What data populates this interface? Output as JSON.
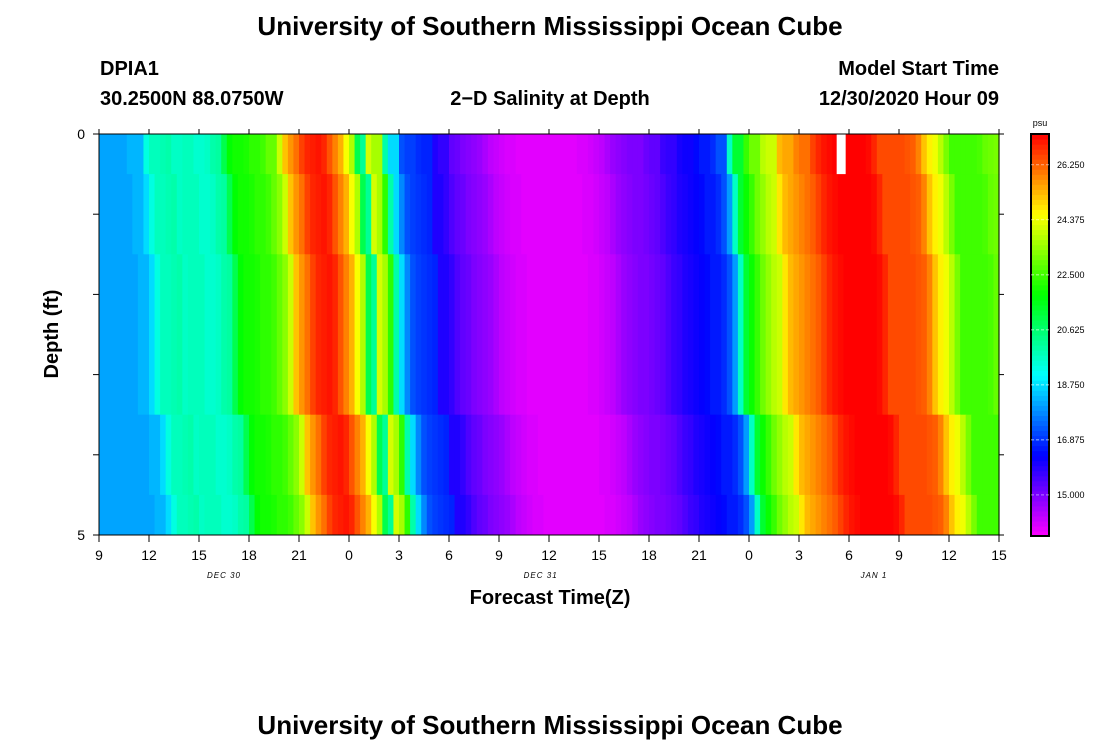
{
  "page": {
    "title": "University of Southern Mississippi Ocean Cube",
    "footer_title": "University of Southern Mississippi Ocean Cube",
    "station_id": "DPIA1",
    "station_coords": "30.2500N 88.0750W",
    "subtitle": "2−D Salinity at Depth",
    "model_start_label": "Model Start Time",
    "model_start_value": "12/30/2020 Hour 09"
  },
  "chart_data": {
    "type": "heatmap",
    "title": "2−D Salinity at Depth",
    "xlabel": "Forecast Time(Z)",
    "ylabel": "Depth (ft)",
    "xlim": [
      0,
      54
    ],
    "ylim": [
      0,
      5
    ],
    "y_inverted": true,
    "x_tick_labels": [
      "9",
      "12",
      "15",
      "18",
      "21",
      "0",
      "3",
      "6",
      "9",
      "12",
      "15",
      "18",
      "21",
      "0",
      "3",
      "6",
      "9",
      "12",
      "15"
    ],
    "y_tick_labels": [
      "0",
      "5"
    ],
    "date_labels": [
      {
        "text": "DEC 30",
        "hour": 7.5
      },
      {
        "text": "DEC 31",
        "hour": 26.5
      },
      {
        "text": "JAN 1",
        "hour": 46.5
      }
    ],
    "colorbar": {
      "unit": "psu",
      "min": 13.6,
      "max": 27.3,
      "tick_values": [
        15.0,
        16.875,
        18.75,
        20.625,
        22.5,
        24.375,
        26.25
      ],
      "tick_labels": [
        "15.000",
        "16.875",
        "18.750",
        "20.625",
        "22.500",
        "24.375",
        "26.250"
      ]
    },
    "missing_cell": {
      "hour": 44.5,
      "depth_top": 0,
      "depth_bottom": 0.5
    },
    "depth_levels": [
      0.25,
      1.0,
      2.0,
      3.0,
      4.0,
      4.75
    ],
    "surface_salinity": [
      18.1,
      18.1,
      18.1,
      18.1,
      18.1,
      18.3,
      18.3,
      18.7,
      19.4,
      19.8,
      19.8,
      19.9,
      20.0,
      19.7,
      19.8,
      19.8,
      19.8,
      19.6,
      19.6,
      19.7,
      20.0,
      20.1,
      21.0,
      21.8,
      22.0,
      22.0,
      22.1,
      22.3,
      22.3,
      22.5,
      22.9,
      23.3,
      24.0,
      25.2,
      25.7,
      26.1,
      26.6,
      26.9,
      27.0,
      27.1,
      26.9,
      26.4,
      25.9,
      25.4,
      24.5,
      23.7,
      21.0,
      20.2,
      24.1,
      23.6,
      22.3,
      20.0,
      18.7,
      17.8,
      17.2,
      17.0,
      16.9,
      16.8,
      16.7,
      16.0,
      16.0,
      15.8,
      15.5,
      15.3,
      15.2,
      15.0,
      14.9,
      14.8,
      14.7,
      14.5,
      14.3,
      14.2,
      14.1,
      14.0,
      14.0,
      13.9,
      13.9,
      13.9,
      13.9,
      13.9,
      13.9,
      13.9,
      13.9,
      13.9,
      13.9,
      13.9,
      14.0,
      14.0,
      14.1,
      14.2,
      14.3,
      14.5,
      14.7,
      14.8,
      14.9,
      15.0,
      15.0,
      15.1,
      15.2,
      15.3,
      15.5,
      15.7,
      15.8,
      16.0,
      16.1,
      16.2,
      16.3,
      16.4,
      16.6,
      16.6,
      16.8,
      17.2,
      18.0,
      19.7,
      21.3,
      21.9,
      22.4,
      23.0,
      23.4,
      23.8,
      24.0,
      24.8,
      25.3,
      25.5,
      25.7,
      25.9,
      26.1,
      26.3,
      26.6,
      26.9,
      27.1,
      27.2,
      27.3,
      27.3,
      27.3,
      27.3,
      27.3,
      27.3,
      27.2,
      26.9,
      26.5,
      26.5,
      26.5,
      26.5,
      26.5,
      26.4,
      26.3,
      25.9,
      25.2,
      24.7,
      24.4,
      23.8,
      23.1,
      22.5,
      22.5,
      22.5,
      22.5,
      22.5,
      22.6,
      22.9,
      23.0,
      23.1
    ],
    "depth_offset": [
      0.0,
      0.3,
      0.45,
      0.45,
      1.1,
      1.5
    ]
  }
}
